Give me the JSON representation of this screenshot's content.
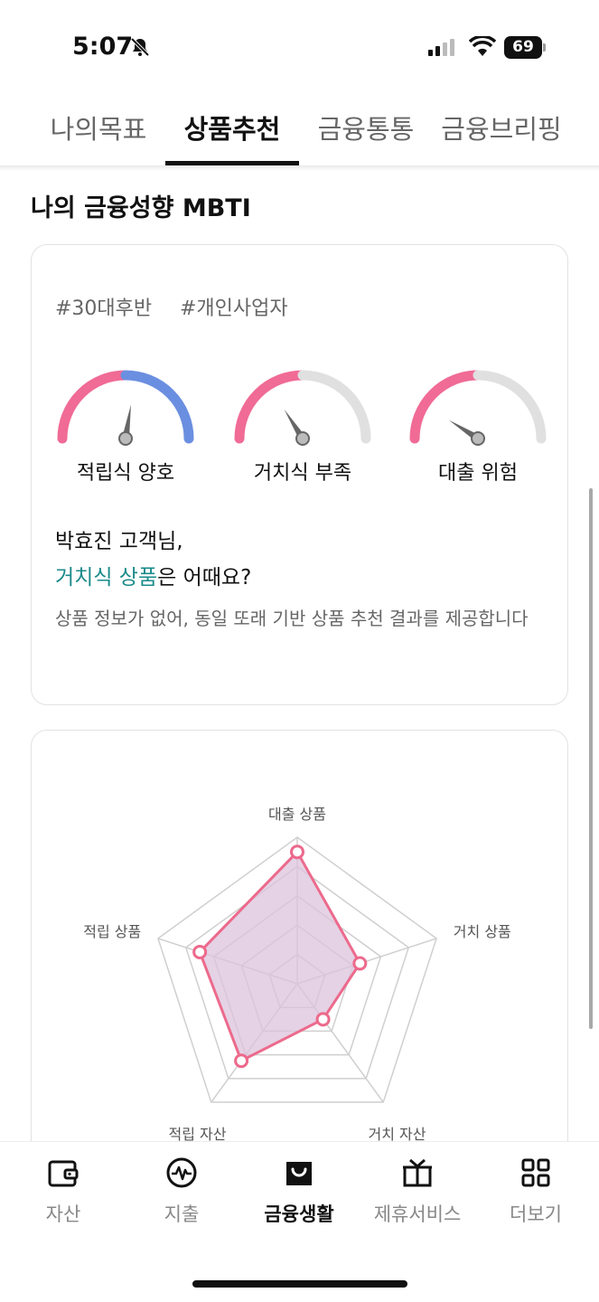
{
  "status_bar": {
    "time": "5:07",
    "battery": "69"
  },
  "tabs": [
    {
      "label": "나의목표"
    },
    {
      "label": "상품추천"
    },
    {
      "label": "금융통통"
    },
    {
      "label": "금융브리핑"
    }
  ],
  "section_title": "나의 금융성향 MBTI",
  "profile": {
    "hashtags": [
      "#30대후반",
      "#개인사업자"
    ],
    "gauges": [
      {
        "label": "적립식 양호",
        "level": 0.55,
        "colors": [
          "#f06b96",
          "#6b8fe0"
        ]
      },
      {
        "label": "거치식 부족",
        "level": 0.32,
        "colors": [
          "#f06b96",
          "#e0e0e0"
        ]
      },
      {
        "label": "대출 위험",
        "level": 0.18,
        "colors": [
          "#f06b96",
          "#e0e0e0"
        ]
      }
    ],
    "customer_line": "박효진 고객님,",
    "recommend_highlight": "거치식 상품",
    "recommend_rest": "은 어때요?",
    "info_text": "상품 정보가 없어, 동일 또래 기반 상품 추천 결과를 제공합니다"
  },
  "chart_data": {
    "type": "radar",
    "axes": [
      "대출 상품",
      "거치 상품",
      "거치 자산",
      "적립 자산",
      "적립 상품"
    ],
    "values": [
      0.9,
      0.45,
      0.3,
      0.65,
      0.7
    ],
    "max": 1,
    "grid_levels": 5,
    "fill_color": "#dcc3dc",
    "line_color": "#ec6a8c"
  },
  "bottom_nav": [
    {
      "label": "자산",
      "icon": "wallet-icon"
    },
    {
      "label": "지출",
      "icon": "pulse-icon"
    },
    {
      "label": "금융생활",
      "icon": "shopping-bag-icon"
    },
    {
      "label": "제휴서비스",
      "icon": "gift-icon"
    },
    {
      "label": "더보기",
      "icon": "grid-icon"
    }
  ]
}
